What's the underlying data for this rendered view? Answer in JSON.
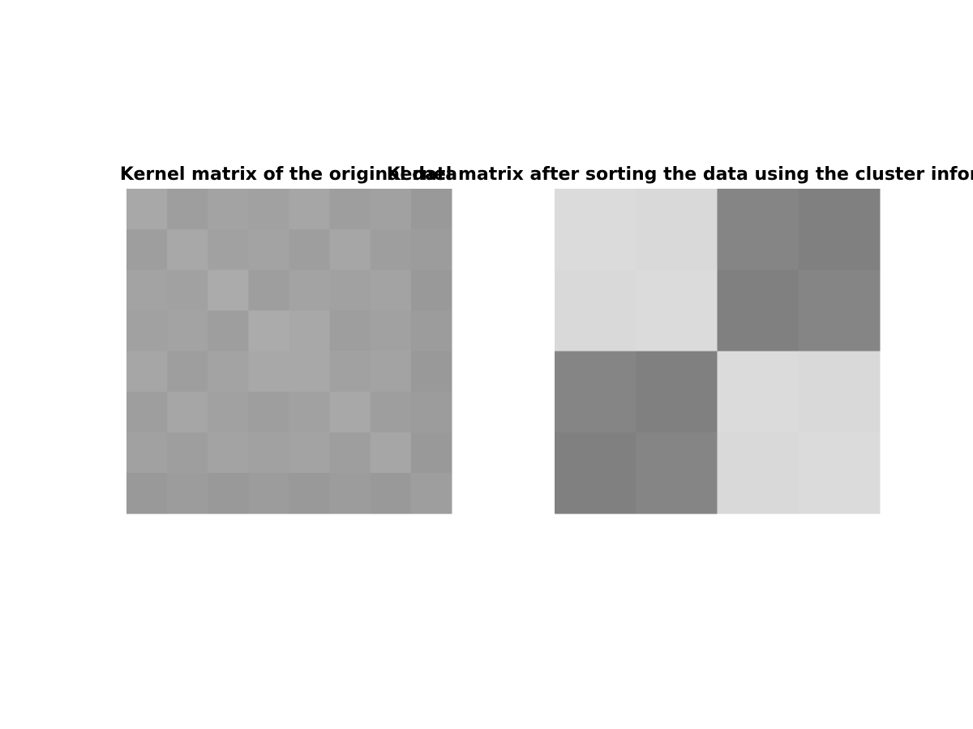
{
  "chart_data": [
    {
      "type": "heatmap",
      "title": "Kernel matrix of the original data",
      "colormap": "gray",
      "zlim": [
        0,
        1
      ],
      "z": [
        [
          0.66,
          0.62,
          0.64,
          0.63,
          0.65,
          0.62,
          0.63,
          0.6
        ],
        [
          0.62,
          0.66,
          0.63,
          0.64,
          0.62,
          0.65,
          0.62,
          0.61
        ],
        [
          0.64,
          0.63,
          0.67,
          0.62,
          0.64,
          0.63,
          0.64,
          0.6
        ],
        [
          0.63,
          0.64,
          0.62,
          0.67,
          0.66,
          0.62,
          0.63,
          0.61
        ],
        [
          0.65,
          0.62,
          0.64,
          0.66,
          0.66,
          0.63,
          0.64,
          0.6
        ],
        [
          0.62,
          0.65,
          0.63,
          0.62,
          0.63,
          0.66,
          0.62,
          0.61
        ],
        [
          0.63,
          0.62,
          0.64,
          0.63,
          0.64,
          0.62,
          0.65,
          0.6
        ],
        [
          0.6,
          0.61,
          0.6,
          0.61,
          0.6,
          0.61,
          0.6,
          0.62
        ]
      ]
    },
    {
      "type": "heatmap",
      "title": "Kernel matrix after sorting the data using the cluster information",
      "colormap": "gray",
      "zlim": [
        0,
        1
      ],
      "z": [
        [
          0.86,
          0.85,
          0.52,
          0.5
        ],
        [
          0.85,
          0.86,
          0.5,
          0.52
        ],
        [
          0.52,
          0.5,
          0.86,
          0.85
        ],
        [
          0.5,
          0.52,
          0.85,
          0.86
        ]
      ]
    }
  ]
}
